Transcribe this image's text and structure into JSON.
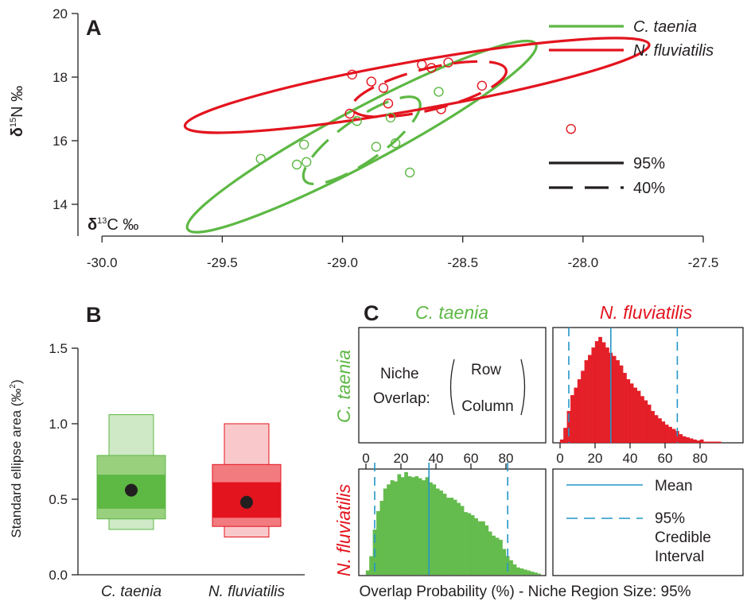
{
  "colors": {
    "green": "#5db844",
    "red": "#e3141e",
    "blue": "#2496c8"
  },
  "chart_data": [
    {
      "panel": "A",
      "type": "scatter",
      "xlabel": "δ13C ‰",
      "ylabel": "δ15N ‰",
      "xlim": [
        -30.1,
        -27.5
      ],
      "ylim": [
        13,
        20
      ],
      "xticks": [
        "-30.0",
        "-29.5",
        "-29.0",
        "-28.5",
        "-28.0",
        "-27.5"
      ],
      "yticks": [
        "14",
        "16",
        "18",
        "20"
      ],
      "legend": [
        "C. taenia",
        "N. fluviatilis"
      ],
      "line_legend": [
        "95%",
        "40%"
      ],
      "series": [
        {
          "name": "C. taenia",
          "color": "#5db844",
          "points": [
            [
              -29.34,
              15.43
            ],
            [
              -29.19,
              15.25
            ],
            [
              -29.16,
              15.88
            ],
            [
              -29.15,
              15.33
            ],
            [
              -28.94,
              16.62
            ],
            [
              -28.86,
              15.81
            ],
            [
              -28.8,
              16.73
            ],
            [
              -28.78,
              15.92
            ],
            [
              -28.72,
              15.0
            ],
            [
              -28.6,
              17.54
            ]
          ],
          "ellipse95": {
            "cx": -28.92,
            "cy": 16.13,
            "rx_data": 0.82,
            "ry_data": 0.86,
            "angle": -28
          },
          "ellipse40": {
            "cx": -28.92,
            "cy": 16.01,
            "rx_data": 0.29,
            "ry_data": 0.67,
            "angle": -35
          }
        },
        {
          "name": "N. fluviatilis",
          "color": "#e3141e",
          "points": [
            [
              -28.96,
              18.08
            ],
            [
              -28.97,
              16.85
            ],
            [
              -28.88,
              17.86
            ],
            [
              -28.83,
              17.66
            ],
            [
              -28.81,
              17.17
            ],
            [
              -28.67,
              18.39
            ],
            [
              -28.63,
              18.29
            ],
            [
              -28.59,
              16.99
            ],
            [
              -28.56,
              18.46
            ],
            [
              -28.42,
              17.73
            ],
            [
              -28.05,
              16.37
            ]
          ],
          "ellipse95": {
            "cx": -28.69,
            "cy": 17.74,
            "rx_data": 0.98,
            "ry_data": 0.76,
            "angle": -10
          },
          "ellipse40": {
            "cx": -28.64,
            "cy": 17.62,
            "rx_data": 0.33,
            "ry_data": 0.65,
            "angle": -14
          }
        }
      ]
    },
    {
      "panel": "B",
      "type": "box",
      "ylabel": "Standard ellipse area (‰2)",
      "ylim": [
        0,
        1.5
      ],
      "yticks": [
        "0.0",
        "0.5",
        "1.0",
        "1.5"
      ],
      "categories": [
        "C. taenia",
        "N. fluviatilis"
      ],
      "series": [
        {
          "name": "C. taenia",
          "mode": 0.56,
          "cred50": [
            0.44,
            0.66
          ],
          "cred75": [
            0.37,
            0.79
          ],
          "cred95": [
            0.3,
            1.06
          ]
        },
        {
          "name": "N. fluviatilis",
          "mode": 0.48,
          "cred50": [
            0.38,
            0.61
          ],
          "cred75": [
            0.32,
            0.73
          ],
          "cred95": [
            0.25,
            1.0
          ]
        }
      ]
    },
    {
      "panel": "C",
      "type": "bar",
      "xlabel": "Overlap Probability (%) - Niche Region Size: 95%",
      "xlim": [
        0,
        100
      ],
      "xticks": [
        "0",
        "20",
        "40",
        "60",
        "80"
      ],
      "row_labels": [
        "C. taenia",
        "N. fluviatilis"
      ],
      "column_labels": [
        "C. taenia",
        "N. fluviatilis"
      ],
      "key": {
        "label": "Niche Overlap:",
        "row": "Row",
        "column": "Column"
      },
      "line_legend": {
        "mean": "Mean",
        "credible": "95% Credible Interval"
      },
      "histograms": [
        {
          "name": "C. taenia in N. fluviatilis",
          "color": "#e3141e",
          "mean": 29,
          "ci95": [
            5,
            67
          ],
          "bins": [
            0,
            2,
            4,
            6,
            8,
            10,
            12,
            14,
            16,
            18,
            20,
            22,
            24,
            26,
            28,
            30,
            32,
            34,
            36,
            38,
            40,
            42,
            44,
            46,
            48,
            50,
            52,
            54,
            56,
            58,
            60,
            62,
            64,
            66,
            68,
            70,
            72,
            74,
            76,
            78,
            80,
            82,
            84,
            86,
            88,
            90
          ],
          "counts": [
            3,
            14,
            30,
            45,
            52,
            60,
            68,
            78,
            83,
            90,
            96,
            100,
            95,
            90,
            85,
            82,
            78,
            73,
            66,
            60,
            56,
            52,
            49,
            44,
            40,
            36,
            30,
            26,
            23,
            20,
            17,
            15,
            13,
            11,
            8,
            6,
            5,
            4,
            3,
            2,
            3,
            1,
            1,
            1,
            1,
            1
          ]
        },
        {
          "name": "N. fluviatilis in C. taenia",
          "color": "#5db844",
          "mean": 36,
          "ci95": [
            5,
            81
          ],
          "bins": [
            0,
            2,
            4,
            6,
            8,
            10,
            12,
            14,
            16,
            18,
            20,
            22,
            24,
            26,
            28,
            30,
            32,
            34,
            36,
            38,
            40,
            42,
            44,
            46,
            48,
            50,
            52,
            54,
            56,
            58,
            60,
            62,
            64,
            66,
            68,
            70,
            72,
            74,
            76,
            78,
            80,
            82,
            84,
            86,
            88,
            90,
            92,
            94,
            96,
            98
          ],
          "counts": [
            4,
            18,
            44,
            62,
            72,
            84,
            88,
            92,
            91,
            98,
            95,
            100,
            96,
            95,
            96,
            94,
            92,
            95,
            90,
            88,
            84,
            82,
            79,
            75,
            75,
            73,
            70,
            67,
            61,
            60,
            58,
            55,
            52,
            52,
            48,
            42,
            38,
            36,
            34,
            25,
            18,
            14,
            10,
            7,
            6,
            5,
            4,
            3,
            2,
            1
          ]
        }
      ]
    }
  ]
}
